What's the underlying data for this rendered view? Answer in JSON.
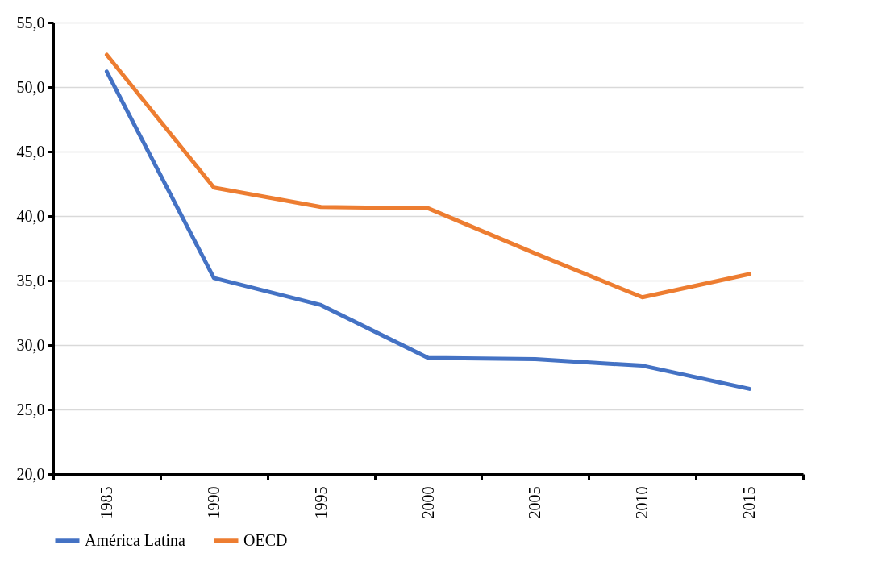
{
  "chart_data": {
    "type": "line",
    "categories": [
      "1985",
      "1990",
      "1995",
      "2000",
      "2005",
      "2010",
      "2015"
    ],
    "series": [
      {
        "name": "América Latina",
        "color": "#4472c4",
        "values": [
          51.2,
          35.2,
          33.1,
          29.0,
          28.9,
          28.4,
          26.6
        ]
      },
      {
        "name": "OECD",
        "color": "#ed7d31",
        "values": [
          52.5,
          42.2,
          40.7,
          40.6,
          37.1,
          33.7,
          35.5
        ]
      }
    ],
    "ylim": [
      20,
      55
    ],
    "yticks": [
      {
        "value": 20,
        "label": "20,0"
      },
      {
        "value": 25,
        "label": "25,0"
      },
      {
        "value": 30,
        "label": "30,0"
      },
      {
        "value": 35,
        "label": "35,0"
      },
      {
        "value": 40,
        "label": "40,0"
      },
      {
        "value": 45,
        "label": "45,0"
      },
      {
        "value": 50,
        "label": "50,0"
      },
      {
        "value": 55,
        "label": "55,0"
      }
    ],
    "grid": "y",
    "legend": "bottom",
    "marker": "none",
    "line_style": "solid"
  }
}
